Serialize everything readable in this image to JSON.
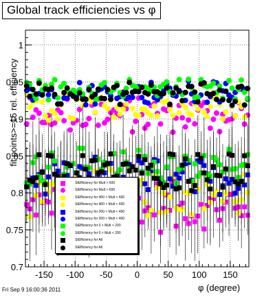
{
  "chart_data": {
    "type": "scatter",
    "title": "Global track efficiencies vs φ",
    "xlabel": "φ (degree)",
    "ylabel": "fit points>=15 rel. efficiency",
    "xlim": [
      -180,
      180
    ],
    "ylim": [
      0.7,
      1.02
    ],
    "xticks": [
      -150,
      -100,
      -50,
      0,
      50,
      100,
      150
    ],
    "yticks": [
      0.7,
      0.75,
      0.8,
      0.85,
      0.9,
      0.95,
      1
    ],
    "grid": true,
    "legend_position": "lower-left",
    "series": [
      {
        "name": "StEfficiency for Mult > 600",
        "color": "#ff00ff",
        "marker": "square",
        "band": "lower",
        "mean": 0.78,
        "spread": 0.03
      },
      {
        "name": "StEfficiency for Mult > 600",
        "color": "#ff00ff",
        "marker": "circle",
        "band": "upper",
        "mean": 0.905,
        "spread": 0.02
      },
      {
        "name": "StEfficiency for 400 < Mult < 600",
        "color": "#ffff00",
        "marker": "square",
        "band": "lower",
        "mean": 0.8,
        "spread": 0.025
      },
      {
        "name": "StEfficiency for 400 < Mult < 600",
        "color": "#ffff00",
        "marker": "circle",
        "band": "upper",
        "mean": 0.915,
        "spread": 0.017
      },
      {
        "name": "StEfficiency for 200 < Mult < 400",
        "color": "#0000ff",
        "marker": "square",
        "band": "lower",
        "mean": 0.82,
        "spread": 0.02
      },
      {
        "name": "StEfficiency for 200 < Mult < 400",
        "color": "#0000ff",
        "marker": "circle",
        "band": "upper",
        "mean": 0.935,
        "spread": 0.012
      },
      {
        "name": "StEfficiency for 0 < Mult < 200",
        "color": "#00ff00",
        "marker": "square",
        "band": "lower",
        "mean": 0.835,
        "spread": 0.018
      },
      {
        "name": "StEfficiency for 0 < Mult < 200",
        "color": "#00ff00",
        "marker": "circle",
        "band": "upper",
        "mean": 0.94,
        "spread": 0.01
      },
      {
        "name": "StEfficiency for All",
        "color": "#000000",
        "marker": "square",
        "band": "lower",
        "mean": 0.83,
        "spread": 0.02
      },
      {
        "name": "StEfficiency for All",
        "color": "#000000",
        "marker": "circle",
        "band": "upper",
        "mean": 0.933,
        "spread": 0.012
      }
    ]
  },
  "footer": "Fri Sep  9 16:00:36 2011"
}
